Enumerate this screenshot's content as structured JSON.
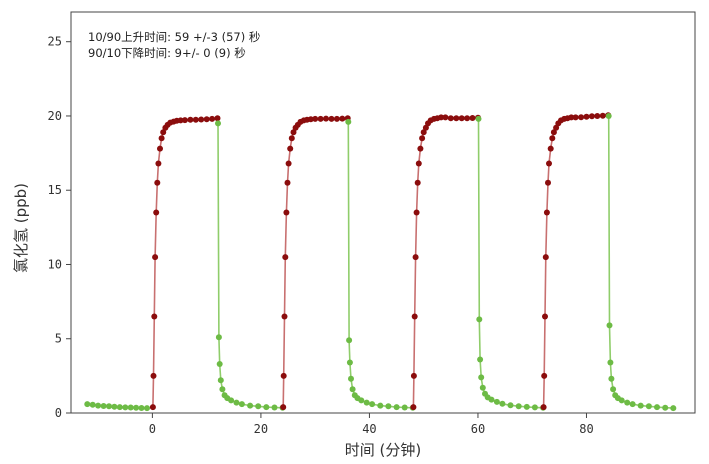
{
  "chart_data": {
    "type": "scatter",
    "title": "",
    "xlabel": "时间 (分钟)",
    "ylabel": "氯化氢 (ppb)",
    "xlim": [
      -15,
      100
    ],
    "ylim": [
      0,
      27
    ],
    "xticks": [
      0,
      20,
      40,
      60,
      80
    ],
    "yticks": [
      0,
      5,
      10,
      15,
      20,
      25
    ],
    "grid": false,
    "legend": "none",
    "annotations": [
      "10/90上升时间: 59 +/-3 (57) 秒",
      "90/10下降时间: 9+/- 0 (9) 秒"
    ],
    "colors": {
      "rise": "#8b0d0d",
      "rise_line": "#c87070",
      "fall": "#6dbb45",
      "fall_line": "#8fcd6a"
    },
    "series": [
      {
        "phase": "fall",
        "x": [
          -12,
          -11,
          -10,
          -9,
          -8,
          -7,
          -6,
          -5,
          -4,
          -3,
          -2,
          -1
        ],
        "y": [
          0.6,
          0.55,
          0.5,
          0.47,
          0.45,
          0.42,
          0.4,
          0.38,
          0.37,
          0.35,
          0.34,
          0.33
        ]
      },
      {
        "phase": "rise",
        "x": [
          0.1,
          0.2,
          0.35,
          0.5,
          0.7,
          0.9,
          1.1,
          1.4,
          1.7,
          2.0,
          2.4,
          2.8,
          3.3,
          3.9,
          4.5,
          5.2,
          6.0,
          7.0,
          8.0,
          9.0,
          10.0,
          11.0,
          12.0
        ],
        "y": [
          0.4,
          2.5,
          6.5,
          10.5,
          13.5,
          15.5,
          16.8,
          17.8,
          18.5,
          18.9,
          19.2,
          19.4,
          19.55,
          19.62,
          19.68,
          19.7,
          19.72,
          19.74,
          19.75,
          19.76,
          19.78,
          19.8,
          19.85
        ]
      },
      {
        "phase": "fall",
        "x": [
          12.1,
          12.25,
          12.4,
          12.6,
          12.9,
          13.3,
          13.8,
          14.5,
          15.5,
          16.5,
          18,
          19.5,
          21,
          22.5,
          24
        ],
        "y": [
          19.5,
          5.1,
          3.3,
          2.2,
          1.6,
          1.2,
          1.0,
          0.85,
          0.7,
          0.6,
          0.5,
          0.45,
          0.4,
          0.37,
          0.35
        ]
      },
      {
        "phase": "rise",
        "x": [
          24.1,
          24.2,
          24.35,
          24.5,
          24.7,
          24.9,
          25.1,
          25.4,
          25.7,
          26.0,
          26.4,
          26.8,
          27.3,
          27.9,
          28.5,
          29.2,
          30.0,
          31.0,
          32.0,
          33.0,
          34.0,
          35.0,
          36.0
        ],
        "y": [
          0.4,
          2.5,
          6.5,
          10.5,
          13.5,
          15.5,
          16.8,
          17.8,
          18.5,
          18.9,
          19.2,
          19.4,
          19.6,
          19.7,
          19.75,
          19.78,
          19.8,
          19.8,
          19.82,
          19.8,
          19.8,
          19.82,
          19.85
        ]
      },
      {
        "phase": "fall",
        "x": [
          36.1,
          36.25,
          36.4,
          36.6,
          36.9,
          37.3,
          37.8,
          38.5,
          39.5,
          40.5,
          42,
          43.5,
          45,
          46.5,
          48
        ],
        "y": [
          19.6,
          4.9,
          3.4,
          2.3,
          1.6,
          1.2,
          1.0,
          0.85,
          0.7,
          0.6,
          0.5,
          0.45,
          0.4,
          0.37,
          0.35
        ]
      },
      {
        "phase": "rise",
        "x": [
          48.1,
          48.2,
          48.35,
          48.5,
          48.7,
          48.9,
          49.1,
          49.4,
          49.7,
          50.0,
          50.4,
          50.8,
          51.3,
          51.9,
          52.5,
          53.2,
          54.0,
          55.0,
          56.0,
          57.0,
          58.0,
          59.0,
          60.0
        ],
        "y": [
          0.4,
          2.5,
          6.5,
          10.5,
          13.5,
          15.5,
          16.8,
          17.8,
          18.5,
          18.9,
          19.2,
          19.5,
          19.7,
          19.8,
          19.85,
          19.9,
          19.9,
          19.85,
          19.85,
          19.85,
          19.85,
          19.86,
          19.88
        ]
      },
      {
        "phase": "fall",
        "x": [
          60.1,
          60.25,
          60.4,
          60.6,
          60.9,
          61.3,
          61.8,
          62.5,
          63.5,
          64.5,
          66,
          67.5,
          69,
          70.5,
          72
        ],
        "y": [
          19.8,
          6.3,
          3.6,
          2.4,
          1.7,
          1.3,
          1.05,
          0.9,
          0.75,
          0.62,
          0.52,
          0.46,
          0.41,
          0.38,
          0.35
        ]
      },
      {
        "phase": "rise",
        "x": [
          72.1,
          72.2,
          72.35,
          72.5,
          72.7,
          72.9,
          73.1,
          73.4,
          73.7,
          74.0,
          74.4,
          74.8,
          75.3,
          75.9,
          76.5,
          77.2,
          78.0,
          79.0,
          80.0,
          81.0,
          82.0,
          83.0,
          84.0
        ],
        "y": [
          0.4,
          2.5,
          6.5,
          10.5,
          13.5,
          15.5,
          16.8,
          17.8,
          18.5,
          18.9,
          19.2,
          19.5,
          19.7,
          19.8,
          19.85,
          19.9,
          19.9,
          19.92,
          19.95,
          19.98,
          20.0,
          20.02,
          20.05
        ]
      },
      {
        "phase": "fall",
        "x": [
          84.1,
          84.25,
          84.4,
          84.6,
          84.9,
          85.3,
          85.8,
          86.5,
          87.5,
          88.5,
          90,
          91.5,
          93,
          94.5,
          96
        ],
        "y": [
          20.0,
          5.9,
          3.4,
          2.3,
          1.6,
          1.2,
          1.0,
          0.85,
          0.7,
          0.6,
          0.5,
          0.45,
          0.4,
          0.36,
          0.33
        ]
      }
    ]
  }
}
